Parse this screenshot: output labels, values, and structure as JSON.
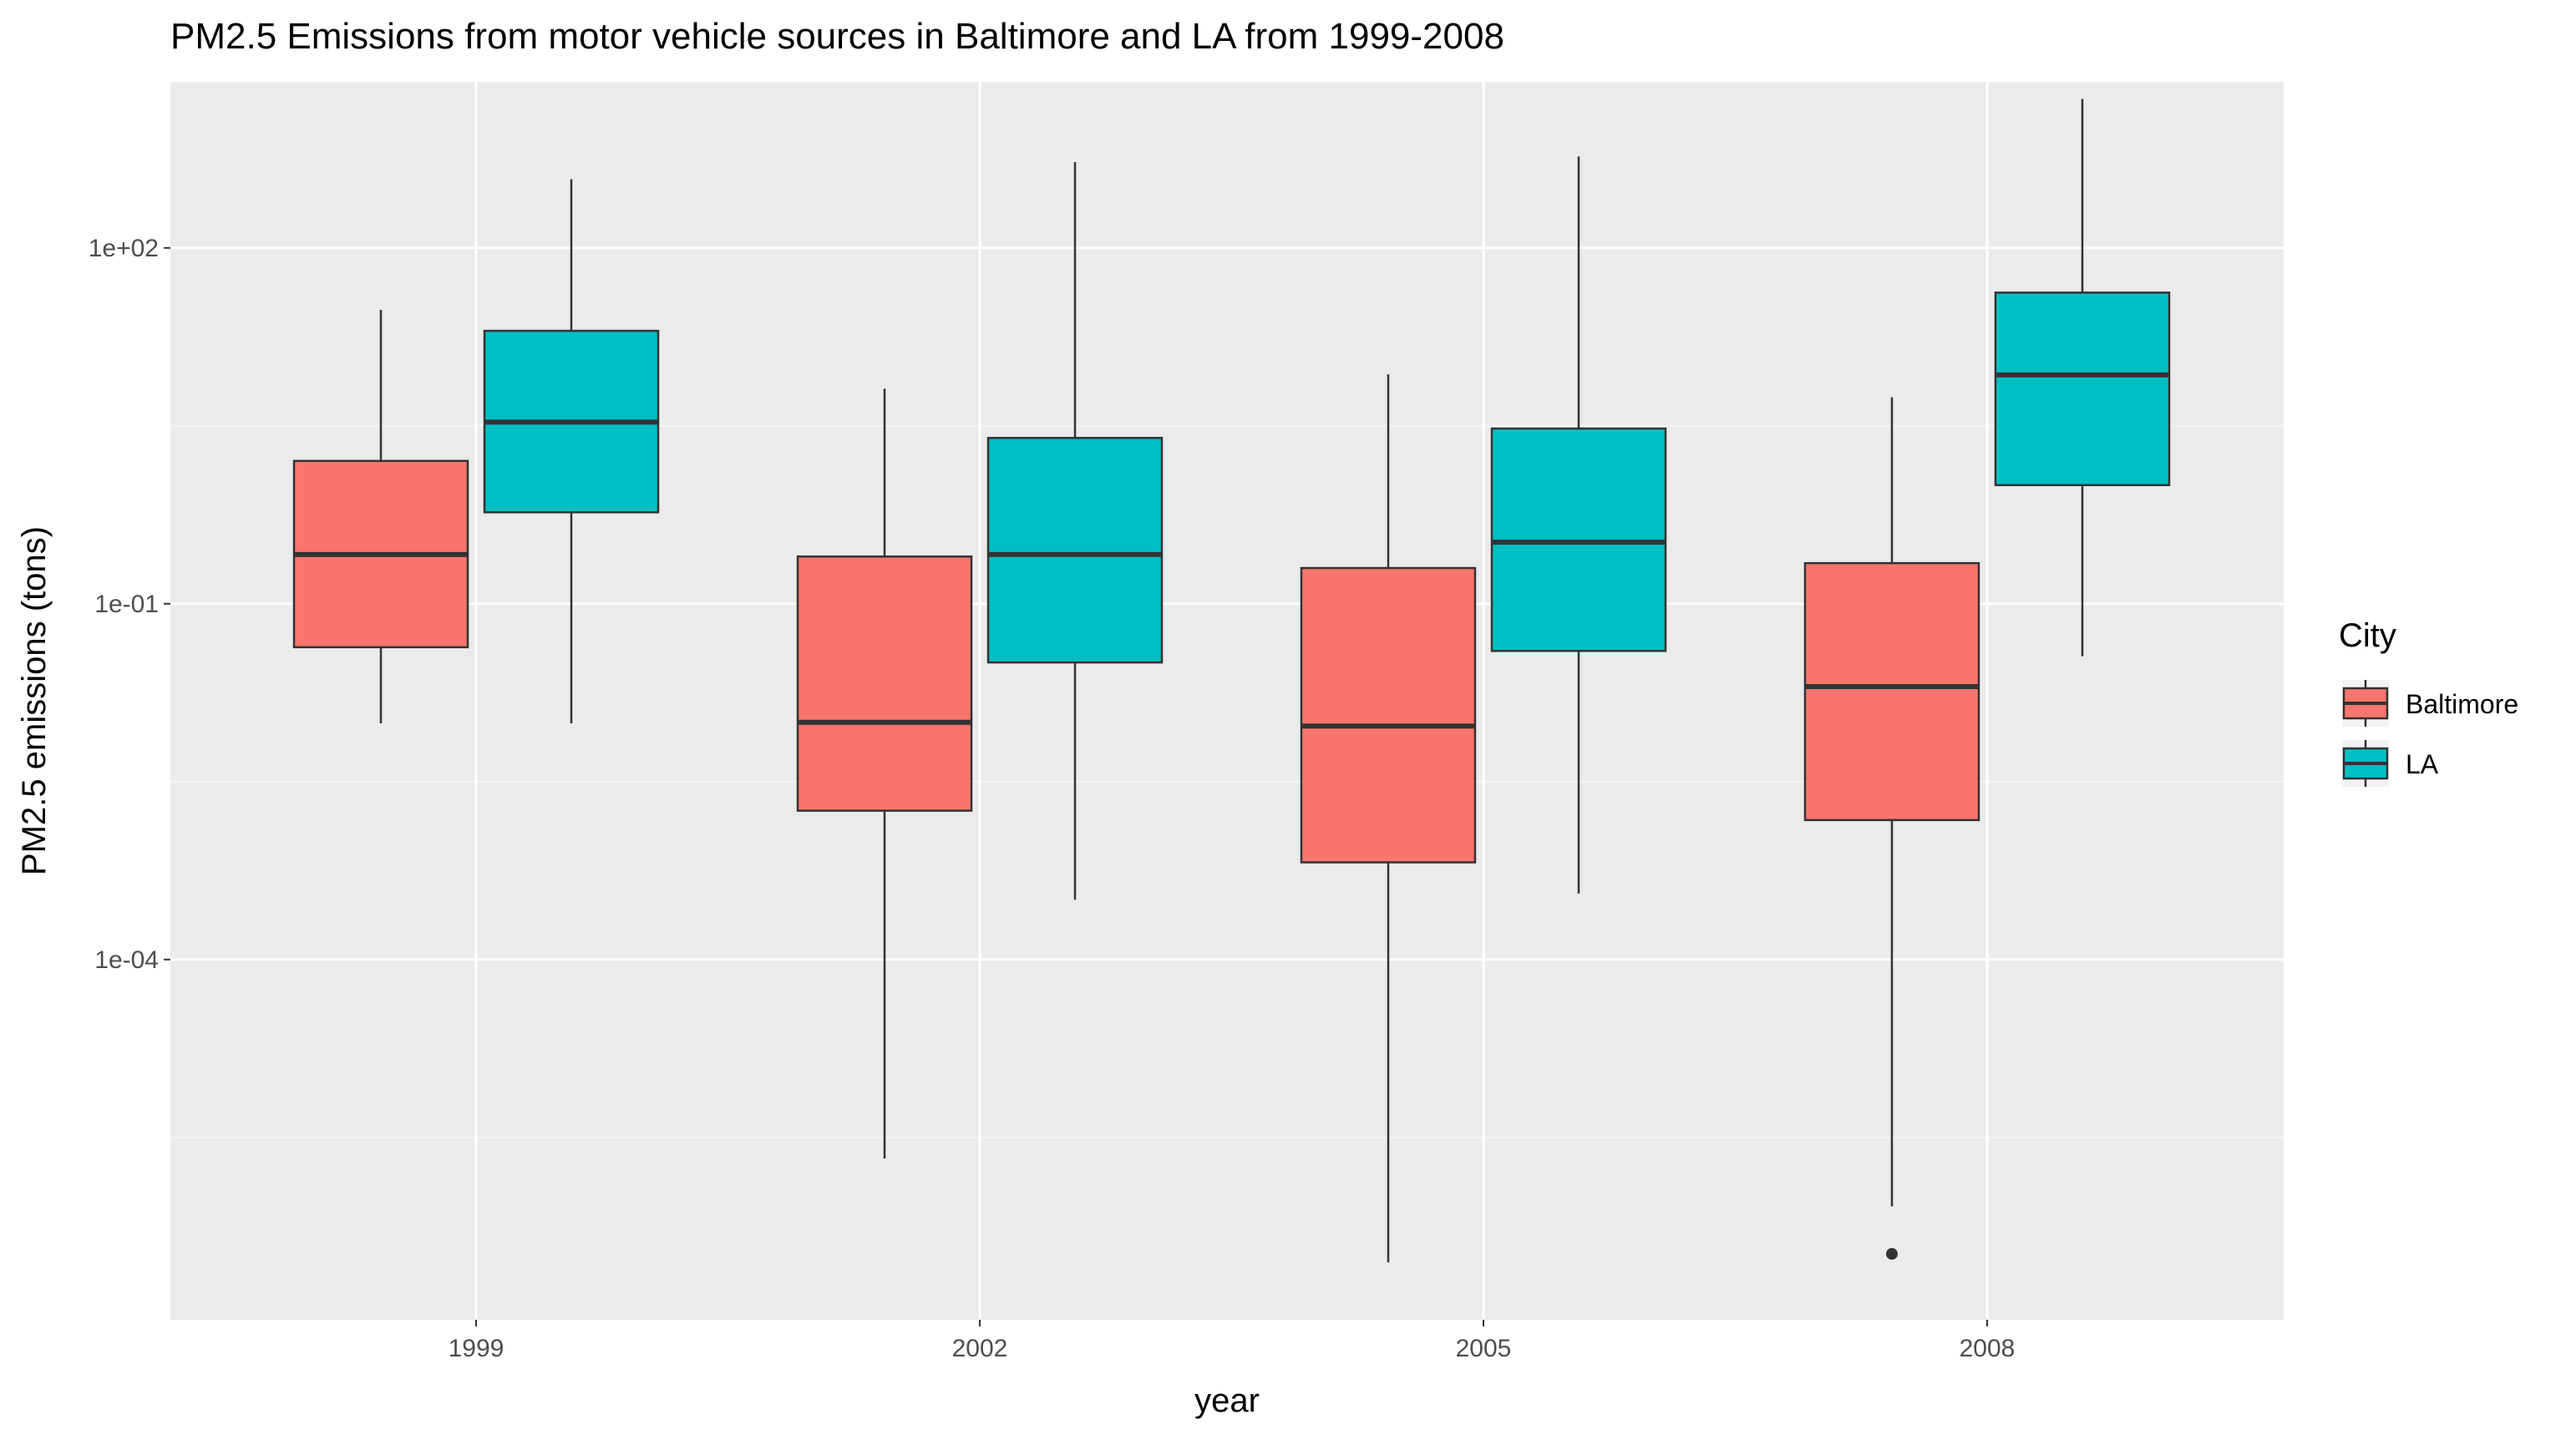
{
  "chart_data": {
    "type": "boxplot",
    "title": "PM2.5 Emissions from motor vehicle sources in Baltimore and LA from 1999-2008",
    "xlabel": "year",
    "ylabel": "PM2.5 emissions (tons)",
    "y_scale": "log10",
    "y_ticks": [
      {
        "value": 0.0001,
        "label": "1e-04"
      },
      {
        "value": 0.1,
        "label": "1e-01"
      },
      {
        "value": 100,
        "label": "1e+02"
      }
    ],
    "ylim": [
      5e-07,
      4000
    ],
    "categories": [
      "1999",
      "2002",
      "2005",
      "2008"
    ],
    "grid": true,
    "legend": {
      "title": "City",
      "position": "right"
    },
    "colors": {
      "panel": "#ebebeb",
      "grid_major": "#ffffff",
      "grid_minor": "#f5f5f5",
      "line": "#333333"
    },
    "series": [
      {
        "name": "Baltimore",
        "color": "#f8766d",
        "boxes": [
          {
            "category": "1999",
            "min": 0.0098,
            "q1": 0.043,
            "median": 0.26,
            "q3": 1.6,
            "max": 30,
            "outliers": []
          },
          {
            "category": "2002",
            "min": 2.1e-06,
            "q1": 0.0018,
            "median": 0.01,
            "q3": 0.25,
            "max": 6.5,
            "outliers": []
          },
          {
            "category": "2005",
            "min": 2.8e-07,
            "q1": 0.00066,
            "median": 0.0093,
            "q3": 0.2,
            "max": 8.6,
            "outliers": []
          },
          {
            "category": "2008",
            "min": 8.3e-07,
            "q1": 0.0015,
            "median": 0.02,
            "q3": 0.22,
            "max": 5.5,
            "outliers": [
              3.3e-07
            ]
          }
        ]
      },
      {
        "name": "LA",
        "color": "#00bfc4",
        "boxes": [
          {
            "category": "1999",
            "min": 0.0098,
            "q1": 0.59,
            "median": 3.4,
            "q3": 20,
            "max": 380,
            "outliers": []
          },
          {
            "category": "2002",
            "min": 0.00032,
            "q1": 0.032,
            "median": 0.26,
            "q3": 2.5,
            "max": 530,
            "outliers": []
          },
          {
            "category": "2005",
            "min": 0.00036,
            "q1": 0.04,
            "median": 0.33,
            "q3": 3.0,
            "max": 590,
            "outliers": []
          },
          {
            "category": "2008",
            "min": 0.036,
            "q1": 1.0,
            "median": 8.5,
            "q3": 42,
            "max": 1800,
            "outliers": []
          }
        ]
      }
    ]
  }
}
